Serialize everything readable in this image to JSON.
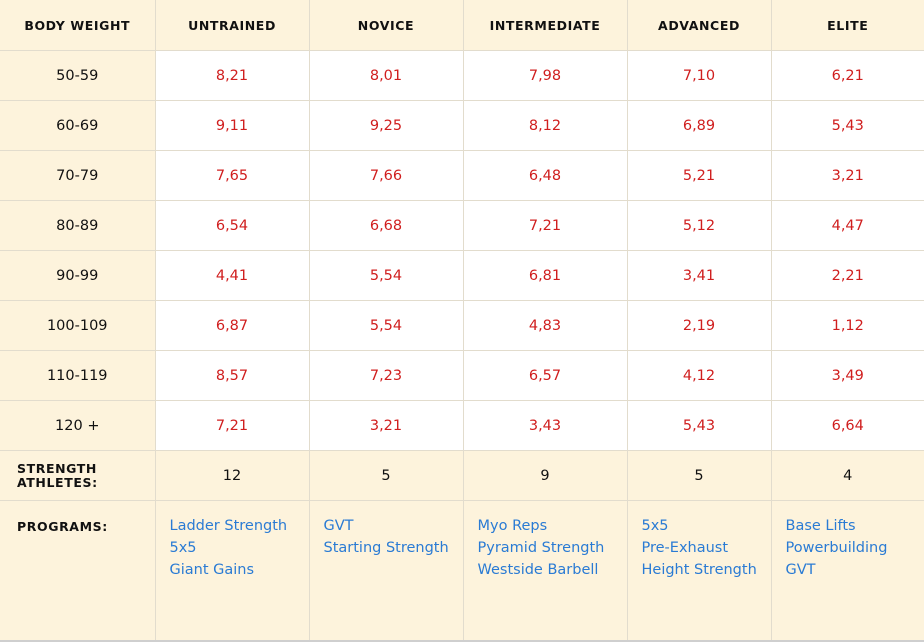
{
  "headers": [
    "BODY WEIGHT",
    "UNTRAINED",
    "NOVICE",
    "INTERMEDIATE",
    "ADVANCED",
    "ELITE"
  ],
  "rows": [
    {
      "weight": "50-59",
      "values": [
        "8,21",
        "8,01",
        "7,98",
        "7,10",
        "6,21"
      ]
    },
    {
      "weight": "60-69",
      "values": [
        "9,11",
        "9,25",
        "8,12",
        "6,89",
        "5,43"
      ]
    },
    {
      "weight": "70-79",
      "values": [
        "7,65",
        "7,66",
        "6,48",
        "5,21",
        "3,21"
      ]
    },
    {
      "weight": "80-89",
      "values": [
        "6,54",
        "6,68",
        "7,21",
        "5,12",
        "4,47"
      ]
    },
    {
      "weight": "90-99",
      "values": [
        "4,41",
        "5,54",
        "6,81",
        "3,41",
        "2,21"
      ]
    },
    {
      "weight": "100-109",
      "values": [
        "6,87",
        "5,54",
        "4,83",
        "2,19",
        "1,12"
      ]
    },
    {
      "weight": "110-119",
      "values": [
        "8,57",
        "7,23",
        "6,57",
        "4,12",
        "3,49"
      ]
    },
    {
      "weight": "120 +",
      "values": [
        "7,21",
        "3,21",
        "3,43",
        "5,43",
        "6,64"
      ]
    }
  ],
  "athletes": {
    "label_line1": "STRENGTH",
    "label_line2": "ATHLETES:",
    "counts": [
      "12",
      "5",
      "9",
      "5",
      "4"
    ]
  },
  "programs": {
    "label": "PROGRAMS:",
    "columns": [
      [
        "Ladder Strength",
        "5x5",
        "Giant Gains"
      ],
      [
        "GVT",
        "Starting Strength"
      ],
      [
        "Myo Reps",
        "Pyramid Strength",
        "Westside Barbell"
      ],
      [
        "5x5",
        "Pre-Exhaust",
        "Height Strength"
      ],
      [
        "Base Lifts",
        "Powerbuilding",
        "GVT"
      ]
    ]
  },
  "colors": {
    "header_bg": "#fdf3dc",
    "value_red": "#d01e1e",
    "link_blue": "#2a7bd4"
  }
}
